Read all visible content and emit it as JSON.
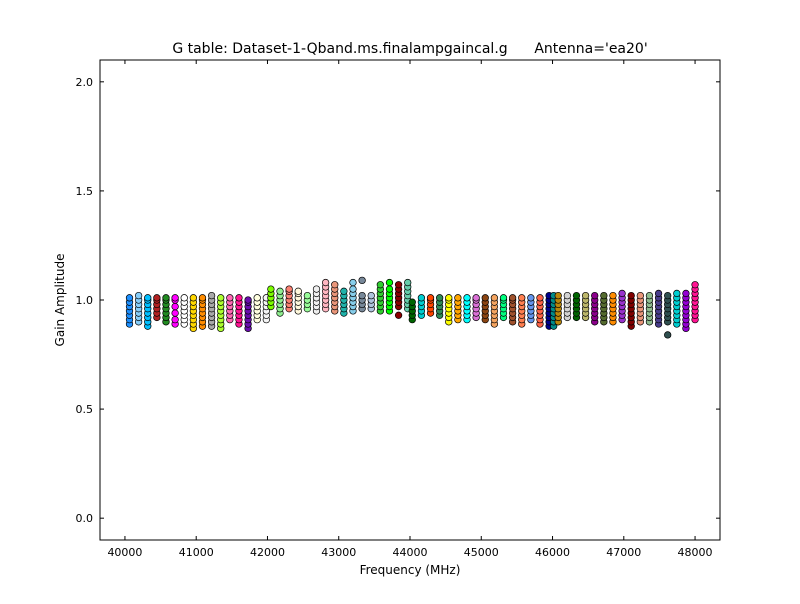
{
  "chart_data": {
    "type": "scatter",
    "title": "G table: Dataset-1-Qband.ms.finalampgaincal.g      Antenna='ea20'",
    "xlabel": "Frequency (MHz)",
    "ylabel": "Gain Amplitude",
    "xlim": [
      39650,
      48350
    ],
    "ylim": [
      -0.1,
      2.1
    ],
    "xticks": [
      40000,
      41000,
      42000,
      43000,
      44000,
      45000,
      46000,
      47000,
      48000
    ],
    "xtick_labels": [
      "40000",
      "41000",
      "42000",
      "43000",
      "44000",
      "45000",
      "46000",
      "47000",
      "48000"
    ],
    "yticks": [
      0.0,
      0.5,
      1.0,
      1.5,
      2.0
    ],
    "ytick_labels": [
      "0.0",
      "0.5",
      "1.0",
      "1.5",
      "2.0"
    ],
    "grid": false,
    "legend": "none",
    "series": [
      {
        "x": 40064,
        "y": [
          0.89,
          0.91,
          0.93,
          0.95,
          0.97,
          0.99,
          1.01
        ],
        "color": "#1e90ff"
      },
      {
        "x": 40192,
        "y": [
          0.9,
          0.92,
          0.94,
          0.96,
          0.98,
          1.0,
          1.02
        ],
        "color": "#87cefa"
      },
      {
        "x": 40320,
        "y": [
          0.88,
          0.9,
          0.92,
          0.94,
          0.96,
          0.98,
          1.0,
          1.01
        ],
        "color": "#00bfff"
      },
      {
        "x": 40448,
        "y": [
          0.92,
          0.94,
          0.96,
          0.98,
          1.0,
          1.01
        ],
        "color": "#b22222"
      },
      {
        "x": 40576,
        "y": [
          0.9,
          0.92,
          0.94,
          0.96,
          0.98,
          1.0,
          1.01
        ],
        "color": "#228b22"
      },
      {
        "x": 40704,
        "y": [
          0.89,
          0.91,
          0.94,
          0.97,
          1.0,
          1.01
        ],
        "color": "#ff00ff"
      },
      {
        "x": 40832,
        "y": [
          0.89,
          0.91,
          0.93,
          0.95,
          0.97,
          0.99,
          1.01
        ],
        "color": "#ffffff"
      },
      {
        "x": 40960,
        "y": [
          0.87,
          0.89,
          0.91,
          0.93,
          0.95,
          0.97,
          0.99,
          1.01
        ],
        "color": "#ffd700"
      },
      {
        "x": 41088,
        "y": [
          0.88,
          0.9,
          0.92,
          0.94,
          0.96,
          0.98,
          1.0,
          1.01
        ],
        "color": "#ff8c00"
      },
      {
        "x": 41216,
        "y": [
          0.88,
          0.9,
          0.92,
          0.94,
          0.96,
          0.98,
          1.0,
          1.02
        ],
        "color": "#a9a9a9"
      },
      {
        "x": 41344,
        "y": [
          0.87,
          0.89,
          0.91,
          0.93,
          0.95,
          0.97,
          0.99,
          1.01
        ],
        "color": "#adff2f"
      },
      {
        "x": 41472,
        "y": [
          0.91,
          0.93,
          0.95,
          0.97,
          0.99,
          1.01
        ],
        "color": "#ff69b4"
      },
      {
        "x": 41600,
        "y": [
          0.89,
          0.91,
          0.93,
          0.95,
          0.97,
          0.99,
          1.01
        ],
        "color": "#ff1493"
      },
      {
        "x": 41728,
        "y": [
          0.87,
          0.89,
          0.91,
          0.93,
          0.95,
          0.97,
          0.99,
          1.0
        ],
        "color": "#6a0dad"
      },
      {
        "x": 41856,
        "y": [
          0.91,
          0.93,
          0.95,
          0.97,
          0.99,
          1.01
        ],
        "color": "#ffffe0"
      },
      {
        "x": 41984,
        "y": [
          0.91,
          0.93,
          0.95,
          0.97,
          0.99,
          1.01
        ],
        "color": "#f5f5f5"
      },
      {
        "x": 42048,
        "y": [
          0.97,
          0.99,
          1.01,
          1.03,
          1.05
        ],
        "color": "#7cfc00"
      },
      {
        "x": 42176,
        "y": [
          0.94,
          0.96,
          0.98,
          1.0,
          1.02,
          1.04
        ],
        "color": "#90ee90"
      },
      {
        "x": 42304,
        "y": [
          0.96,
          0.98,
          1.0,
          1.02,
          1.04,
          1.05
        ],
        "color": "#fa8072"
      },
      {
        "x": 42432,
        "y": [
          0.95,
          0.97,
          0.99,
          1.01,
          1.03,
          1.04
        ],
        "color": "#fff8dc"
      },
      {
        "x": 42560,
        "y": [
          0.96,
          0.98,
          1.0,
          1.02
        ],
        "color": "#98fb98"
      },
      {
        "x": 42688,
        "y": [
          0.95,
          0.97,
          0.99,
          1.01,
          1.03,
          1.05
        ],
        "color": "#f0f0f0"
      },
      {
        "x": 42816,
        "y": [
          0.96,
          0.98,
          1.0,
          1.02,
          1.04,
          1.06,
          1.08
        ],
        "color": "#ffb6c1"
      },
      {
        "x": 42944,
        "y": [
          0.95,
          0.97,
          0.99,
          1.01,
          1.03,
          1.05,
          1.07
        ],
        "color": "#e9967a"
      },
      {
        "x": 43072,
        "y": [
          0.94,
          0.96,
          0.98,
          1.0,
          1.02,
          1.04
        ],
        "color": "#20b2aa"
      },
      {
        "x": 43200,
        "y": [
          0.95,
          0.97,
          0.99,
          1.01,
          1.03,
          1.05,
          1.08
        ],
        "color": "#87ceeb"
      },
      {
        "x": 43328,
        "y": [
          0.96,
          0.98,
          1.0,
          1.02,
          1.09
        ],
        "color": "#778899"
      },
      {
        "x": 43456,
        "y": [
          0.96,
          0.98,
          1.0,
          1.02
        ],
        "color": "#b0c4de"
      },
      {
        "x": 43584,
        "y": [
          0.95,
          0.97,
          0.99,
          1.01,
          1.03,
          1.05,
          1.07
        ],
        "color": "#32cd32"
      },
      {
        "x": 43712,
        "y": [
          0.95,
          0.97,
          0.99,
          1.01,
          1.03,
          1.05,
          1.08
        ],
        "color": "#00ff00"
      },
      {
        "x": 43840,
        "y": [
          0.93,
          0.97,
          0.99,
          1.01,
          1.03,
          1.05,
          1.07
        ],
        "color": "#8b0000"
      },
      {
        "x": 43968,
        "y": [
          0.96,
          0.98,
          1.0,
          1.02,
          1.04,
          1.06,
          1.08
        ],
        "color": "#66cdaa"
      },
      {
        "x": 44032,
        "y": [
          0.91,
          0.93,
          0.95,
          0.97,
          0.99
        ],
        "color": "#006400"
      },
      {
        "x": 44160,
        "y": [
          0.93,
          0.95,
          0.97,
          0.99,
          1.01
        ],
        "color": "#00ced1"
      },
      {
        "x": 44288,
        "y": [
          0.94,
          0.96,
          0.98,
          1.0,
          1.01
        ],
        "color": "#ff4500"
      },
      {
        "x": 44416,
        "y": [
          0.93,
          0.95,
          0.97,
          0.99,
          1.01
        ],
        "color": "#2e8b57"
      },
      {
        "x": 44544,
        "y": [
          0.9,
          0.92,
          0.94,
          0.96,
          0.98,
          1.0,
          1.01
        ],
        "color": "#ffff00"
      },
      {
        "x": 44672,
        "y": [
          0.91,
          0.93,
          0.95,
          0.97,
          0.99,
          1.01
        ],
        "color": "#ffa500"
      },
      {
        "x": 44800,
        "y": [
          0.91,
          0.93,
          0.95,
          0.97,
          0.99,
          1.01
        ],
        "color": "#00ffff"
      },
      {
        "x": 44928,
        "y": [
          0.92,
          0.94,
          0.96,
          0.98,
          1.0,
          1.01
        ],
        "color": "#da70d6"
      },
      {
        "x": 45056,
        "y": [
          0.91,
          0.93,
          0.95,
          0.97,
          0.99,
          1.01
        ],
        "color": "#8b4513"
      },
      {
        "x": 45184,
        "y": [
          0.89,
          0.91,
          0.93,
          0.95,
          0.97,
          0.99,
          1.01
        ],
        "color": "#f4a460"
      },
      {
        "x": 45312,
        "y": [
          0.92,
          0.94,
          0.96,
          0.98,
          1.0,
          1.01
        ],
        "color": "#00ff7f"
      },
      {
        "x": 45440,
        "y": [
          0.9,
          0.92,
          0.94,
          0.96,
          0.98,
          1.0,
          1.01
        ],
        "color": "#a0522d"
      },
      {
        "x": 45568,
        "y": [
          0.89,
          0.91,
          0.93,
          0.95,
          0.97,
          0.99,
          1.01
        ],
        "color": "#ff7f50"
      },
      {
        "x": 45696,
        "y": [
          0.91,
          0.93,
          0.95,
          0.97,
          0.99,
          1.01
        ],
        "color": "#6495ed"
      },
      {
        "x": 45824,
        "y": [
          0.89,
          0.91,
          0.93,
          0.95,
          0.97,
          0.99,
          1.01
        ],
        "color": "#ff6347"
      },
      {
        "x": 45952,
        "y": [
          0.88,
          0.9,
          0.92,
          0.94,
          0.96,
          0.98,
          1.0,
          1.02
        ],
        "color": "#00008b"
      },
      {
        "x": 46016,
        "y": [
          0.88,
          0.9,
          0.92,
          0.94,
          0.96,
          0.98,
          1.0,
          1.02
        ],
        "color": "#008b8b"
      },
      {
        "x": 46080,
        "y": [
          0.9,
          0.92,
          0.94,
          0.96,
          0.98,
          1.0,
          1.02
        ],
        "color": "#b8860b"
      },
      {
        "x": 46208,
        "y": [
          0.92,
          0.94,
          0.96,
          0.98,
          1.0,
          1.02
        ],
        "color": "#d3d3d3"
      },
      {
        "x": 46336,
        "y": [
          0.92,
          0.94,
          0.96,
          0.98,
          1.0,
          1.02
        ],
        "color": "#006400"
      },
      {
        "x": 46464,
        "y": [
          0.92,
          0.94,
          0.96,
          0.98,
          1.0,
          1.02
        ],
        "color": "#bdb76b"
      },
      {
        "x": 46592,
        "y": [
          0.9,
          0.92,
          0.94,
          0.96,
          0.98,
          1.0,
          1.02
        ],
        "color": "#8b008b"
      },
      {
        "x": 46720,
        "y": [
          0.9,
          0.92,
          0.94,
          0.96,
          0.98,
          1.0,
          1.02
        ],
        "color": "#556b2f"
      },
      {
        "x": 46848,
        "y": [
          0.9,
          0.92,
          0.94,
          0.96,
          0.98,
          1.0,
          1.02
        ],
        "color": "#ff8c00"
      },
      {
        "x": 46976,
        "y": [
          0.91,
          0.93,
          0.95,
          0.97,
          0.99,
          1.01,
          1.03
        ],
        "color": "#9932cc"
      },
      {
        "x": 47104,
        "y": [
          0.88,
          0.9,
          0.92,
          0.94,
          0.96,
          0.98,
          1.0,
          1.02
        ],
        "color": "#800000"
      },
      {
        "x": 47232,
        "y": [
          0.9,
          0.92,
          0.94,
          0.96,
          0.98,
          1.0,
          1.02
        ],
        "color": "#e9967a"
      },
      {
        "x": 47360,
        "y": [
          0.9,
          0.92,
          0.94,
          0.96,
          0.98,
          1.0,
          1.02
        ],
        "color": "#8fbc8f"
      },
      {
        "x": 47488,
        "y": [
          0.89,
          0.91,
          0.93,
          0.95,
          0.97,
          0.99,
          1.01,
          1.03
        ],
        "color": "#483d8b"
      },
      {
        "x": 47616,
        "y": [
          0.84,
          0.9,
          0.92,
          0.94,
          0.96,
          0.98,
          1.0,
          1.02
        ],
        "color": "#2f4f4f"
      },
      {
        "x": 47744,
        "y": [
          0.89,
          0.91,
          0.93,
          0.95,
          0.97,
          0.99,
          1.01,
          1.03
        ],
        "color": "#00ced1"
      },
      {
        "x": 47872,
        "y": [
          0.87,
          0.89,
          0.91,
          0.93,
          0.95,
          0.97,
          0.99,
          1.01,
          1.03
        ],
        "color": "#9400d3"
      },
      {
        "x": 48000,
        "y": [
          0.91,
          0.93,
          0.95,
          0.97,
          0.99,
          1.01,
          1.03,
          1.05,
          1.07
        ],
        "color": "#ff1493"
      }
    ]
  }
}
